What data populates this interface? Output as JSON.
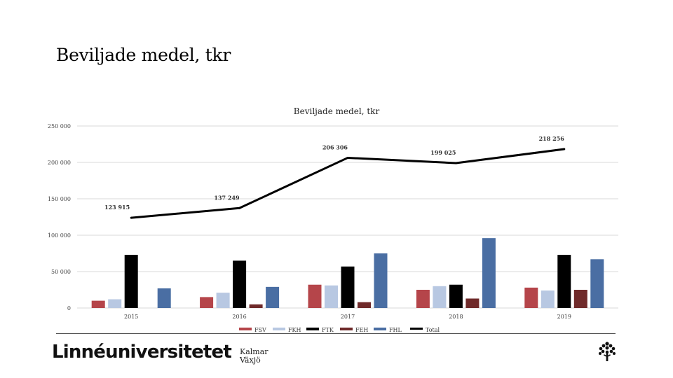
{
  "slide": {
    "title": "Beviljade medel, tkr"
  },
  "footer": {
    "brand": "Linnéuniversitetet",
    "campus_1": "Kalmar",
    "campus_2": "Växjö",
    "logo_icon": "tree-icon"
  },
  "chart_data": {
    "type": "bar",
    "title": "Beviljade medel, tkr",
    "xlabel": "",
    "ylabel": "",
    "categories": [
      "2015",
      "2016",
      "2017",
      "2018",
      "2019"
    ],
    "ylim": [
      0,
      250000
    ],
    "yticks": [
      0,
      50000,
      100000,
      150000,
      200000,
      250000
    ],
    "ytick_labels": [
      "0",
      "50 000",
      "100 000",
      "150 000",
      "200 000",
      "250 000"
    ],
    "grid": true,
    "legend_position": "bottom",
    "series": [
      {
        "name": "FSV",
        "color": "#b5454a",
        "values": [
          10000,
          15000,
          32000,
          25000,
          28000
        ]
      },
      {
        "name": "FKH",
        "color": "#b8c8e2",
        "values": [
          12000,
          21000,
          31000,
          30000,
          24000
        ]
      },
      {
        "name": "FTK",
        "color": "#000000",
        "values": [
          73000,
          65000,
          57000,
          32000,
          73000
        ]
      },
      {
        "name": "FEH",
        "color": "#6f2a2a",
        "values": [
          0,
          5000,
          8000,
          13000,
          25000
        ]
      },
      {
        "name": "FHL",
        "color": "#4a6ea3",
        "values": [
          27000,
          29000,
          75000,
          96000,
          67000
        ]
      }
    ],
    "line_series": {
      "name": "Total",
      "color": "#000000",
      "values": [
        123915,
        137249,
        206306,
        199025,
        218256
      ],
      "labels": [
        "123 915",
        "137 249",
        "206 306",
        "199 025",
        "218 256"
      ]
    }
  }
}
